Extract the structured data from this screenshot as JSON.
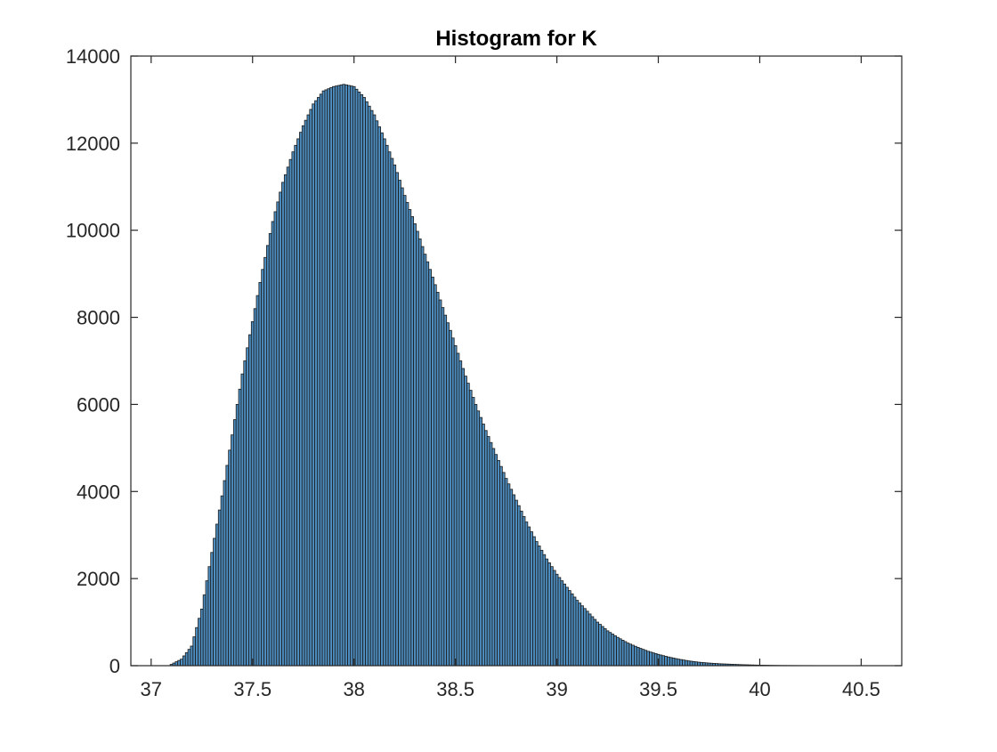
{
  "chart_data": {
    "type": "bar",
    "title": "Histogram for K",
    "xlabel": "",
    "ylabel": "",
    "xlim": [
      36.9,
      40.7
    ],
    "ylim": [
      0,
      14000
    ],
    "xticks": [
      37,
      37.5,
      38,
      38.5,
      39,
      39.5,
      40,
      40.5
    ],
    "xtick_labels": [
      "37",
      "37.5",
      "38",
      "38.5",
      "39",
      "39.5",
      "40",
      "40.5"
    ],
    "yticks": [
      0,
      2000,
      4000,
      6000,
      8000,
      10000,
      12000,
      14000
    ],
    "ytick_labels": [
      "0",
      "2000",
      "4000",
      "6000",
      "8000",
      "10000",
      "12000",
      "14000"
    ],
    "bin_width": 0.0125,
    "x": [
      37.1,
      37.15,
      37.2,
      37.25,
      37.3,
      37.35,
      37.4,
      37.45,
      37.5,
      37.55,
      37.6,
      37.65,
      37.7,
      37.75,
      37.8,
      37.85,
      37.9,
      37.95,
      38.0,
      38.05,
      38.1,
      38.15,
      38.2,
      38.25,
      38.3,
      38.35,
      38.4,
      38.45,
      38.5,
      38.55,
      38.6,
      38.65,
      38.7,
      38.75,
      38.8,
      38.85,
      38.9,
      38.95,
      39.0,
      39.05,
      39.1,
      39.15,
      39.2,
      39.25,
      39.3,
      39.35,
      39.4,
      39.45,
      39.5,
      39.55,
      39.6,
      39.65,
      39.7,
      39.75,
      39.8,
      39.85,
      39.9,
      39.95,
      40.0,
      40.05,
      40.1,
      40.2,
      40.3,
      40.4,
      40.5
    ],
    "values": [
      30,
      150,
      450,
      1300,
      2600,
      3900,
      5300,
      6700,
      7900,
      9100,
      10200,
      11100,
      11800,
      12400,
      12900,
      13200,
      13300,
      13350,
      13300,
      13050,
      12650,
      12100,
      11500,
      10800,
      10150,
      9450,
      8750,
      8050,
      7350,
      6650,
      6000,
      5400,
      4850,
      4300,
      3800,
      3300,
      2850,
      2450,
      2100,
      1800,
      1500,
      1250,
      1000,
      800,
      650,
      520,
      420,
      330,
      260,
      200,
      150,
      110,
      80,
      60,
      45,
      35,
      25,
      18,
      12,
      8,
      5,
      3,
      2,
      1,
      0
    ]
  }
}
